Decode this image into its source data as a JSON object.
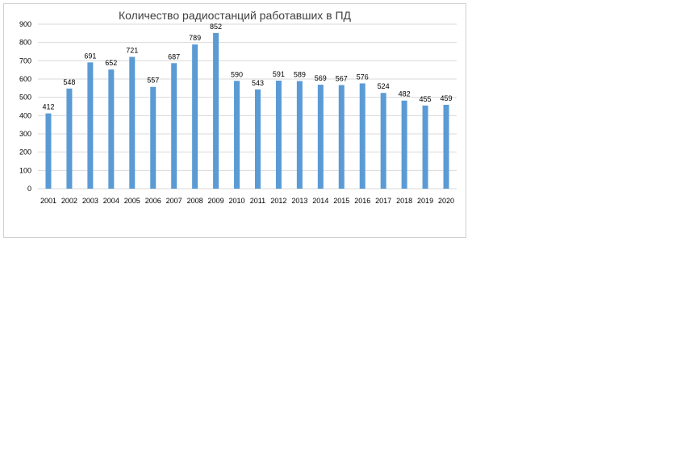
{
  "chart_data": {
    "type": "bar",
    "title": "Количество радиостанций работавших в ПД",
    "xlabel": "",
    "ylabel": "",
    "categories": [
      "2001",
      "2002",
      "2003",
      "2004",
      "2005",
      "2006",
      "2007",
      "2008",
      "2009",
      "2010",
      "2011",
      "2012",
      "2013",
      "2014",
      "2015",
      "2016",
      "2017",
      "2018",
      "2019",
      "2020"
    ],
    "values": [
      412,
      548,
      691,
      652,
      721,
      557,
      687,
      789,
      852,
      590,
      543,
      591,
      589,
      569,
      567,
      576,
      524,
      482,
      455,
      459
    ],
    "ylim": [
      0,
      900
    ],
    "yticks": [
      0,
      100,
      200,
      300,
      400,
      500,
      600,
      700,
      800,
      900
    ],
    "grid": true,
    "legend": "none",
    "data_labels": true,
    "bar_color": "#5b9bd5",
    "grid_color": "#d9d9d9"
  }
}
